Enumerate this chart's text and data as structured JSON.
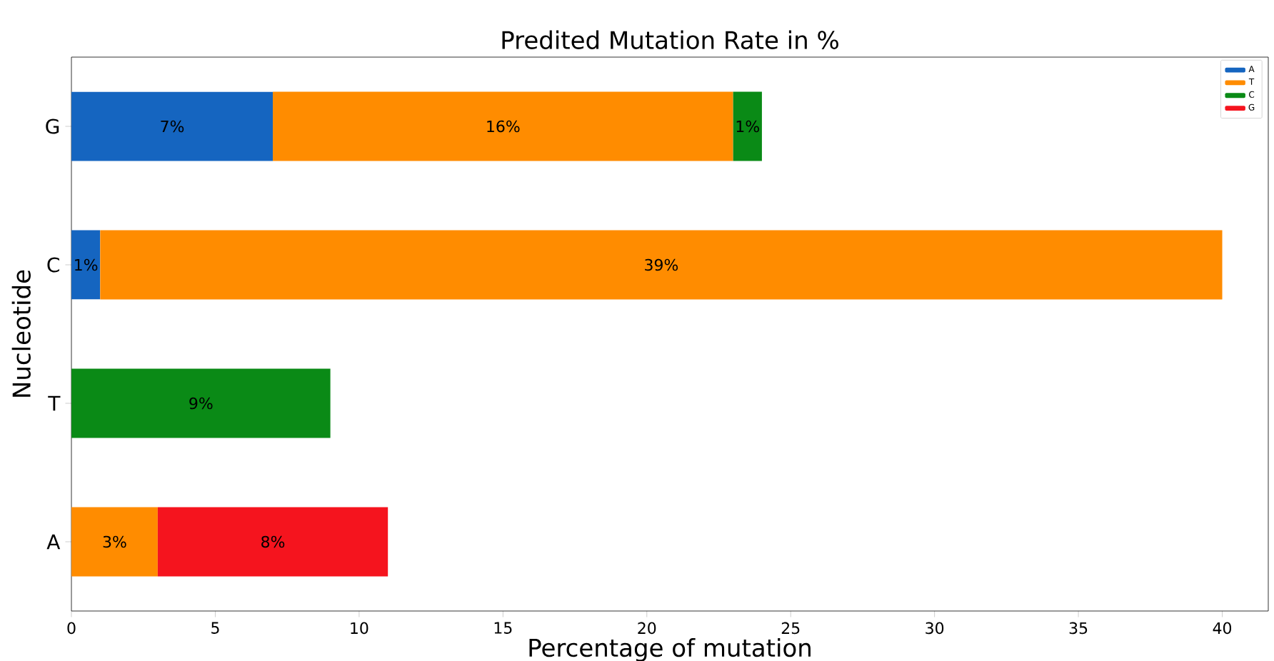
{
  "chart_data": {
    "type": "bar",
    "orientation": "horizontal",
    "stacked": true,
    "title": "Predited Mutation Rate in %",
    "xlabel": "Percentage of mutation",
    "ylabel": "Nucleotide",
    "categories": [
      "G",
      "C",
      "T",
      "A"
    ],
    "series": [
      {
        "name": "A",
        "color": "#1565c0",
        "values": [
          7,
          1,
          null,
          null
        ],
        "value_labels": [
          "7%",
          "1%",
          null,
          null
        ]
      },
      {
        "name": "T",
        "color": "#ff8c00",
        "values": [
          16,
          39,
          null,
          3
        ],
        "value_labels": [
          "16%",
          "39%",
          null,
          "3%"
        ]
      },
      {
        "name": "C",
        "color": "#0a8a16",
        "values": [
          1,
          null,
          9,
          null
        ],
        "value_labels": [
          "1%",
          null,
          "9%",
          null
        ]
      },
      {
        "name": "G",
        "color": "#f5141e",
        "values": [
          null,
          null,
          null,
          8
        ],
        "value_labels": [
          null,
          null,
          null,
          "8%"
        ]
      }
    ],
    "xlim": [
      0,
      41.6
    ],
    "xticks": [
      0,
      5,
      10,
      15,
      20,
      25,
      30,
      35,
      40
    ],
    "grid": false,
    "legend": "top right"
  }
}
